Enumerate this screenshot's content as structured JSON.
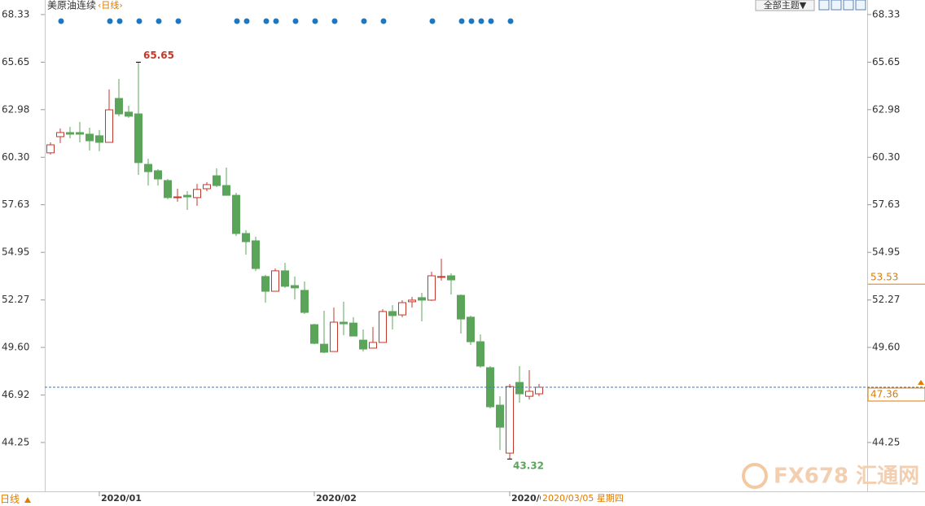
{
  "chart_data": {
    "type": "candlestick",
    "title": "美原油连续",
    "period": "‹日线›",
    "theme_button": "全部主题▼",
    "bottom_period": "日线",
    "date_label": "2020/03/05 星期四",
    "watermark": "FX678 汇通网",
    "up_color": "#c0392b",
    "down_color": "#5ba55b",
    "marker_color": "#1f77c4",
    "ylim": [
      41.5,
      69.15
    ],
    "yticks": [
      68.33,
      65.65,
      62.98,
      {
        "value": 60.3,
        "label": "60.30"
      },
      57.63,
      54.95,
      52.27,
      {
        "value": 49.6,
        "label": "49.60"
      },
      46.92,
      44.25
    ],
    "x_labels": [
      {
        "index": 5,
        "label": "2020/01"
      },
      {
        "index": 27,
        "label": "2020/02"
      },
      {
        "index": 47,
        "label": "2020/0"
      }
    ],
    "open": [
      60.55,
      61.46,
      61.69,
      61.69,
      61.6,
      61.51,
      61.14,
      63.61,
      62.84,
      62.74,
      59.9,
      59.54,
      58.99,
      58.03,
      58.16,
      58.03,
      58.53,
      59.26,
      58.71,
      58.16,
      56.01,
      55.6,
      53.59,
      52.76,
      53.91,
      53.08,
      52.81,
      50.88,
      49.78,
      49.37,
      51.02,
      50.97,
      50.01,
      49.56,
      49.88,
      51.62,
      51.43,
      52.17,
      52.4,
      52.26,
      53.59,
      53.63,
      52.53,
      51.3,
      49.92,
      48.46,
      46.35,
      43.65,
      47.63,
      46.85,
      46.99
    ],
    "high": [
      61.14,
      61.92,
      62.01,
      62.29,
      61.96,
      61.83,
      64.12,
      64.71,
      63.2,
      65.65,
      60.22,
      59.63,
      59.08,
      58.53,
      58.39,
      58.8,
      58.9,
      59.68,
      59.72,
      58.3,
      56.2,
      55.83,
      53.68,
      54.04,
      54.36,
      53.59,
      53.31,
      50.93,
      51.66,
      51.84,
      52.17,
      51.3,
      50.61,
      50.75,
      51.75,
      51.98,
      52.26,
      52.44,
      52.67,
      53.86,
      54.59,
      53.77,
      52.58,
      51.39,
      50.33,
      48.55,
      46.85,
      47.54,
      48.55,
      48.32,
      47.55
    ],
    "low": [
      60.45,
      61.1,
      61.37,
      61.14,
      60.68,
      60.64,
      61.14,
      62.61,
      62.52,
      59.31,
      58.71,
      58.71,
      57.94,
      57.8,
      57.34,
      57.57,
      58.39,
      58.62,
      58.16,
      55.87,
      54.82,
      53.9,
      52.12,
      52.76,
      52.95,
      52.3,
      51.48,
      49.78,
      49.28,
      49.37,
      50.29,
      50.24,
      49.37,
      49.56,
      49.88,
      50.61,
      51.3,
      51.84,
      51.07,
      52.21,
      53.36,
      52.58,
      50.38,
      49.74,
      48.46,
      46.17,
      43.83,
      43.32,
      46.49,
      46.67,
      46.85
    ],
    "close": [
      61.0,
      61.69,
      61.6,
      61.6,
      61.23,
      61.14,
      62.97,
      62.74,
      62.61,
      60.0,
      59.49,
      59.08,
      58.03,
      58.07,
      58.07,
      58.49,
      58.76,
      58.71,
      58.16,
      56.01,
      55.55,
      54.04,
      52.76,
      53.91,
      53.04,
      52.95,
      51.57,
      49.83,
      49.33,
      51.02,
      50.93,
      50.24,
      49.51,
      49.88,
      51.62,
      51.39,
      52.12,
      52.26,
      52.26,
      53.63,
      53.59,
      53.4,
      51.2,
      49.92,
      48.55,
      46.26,
      45.11,
      47.4,
      46.99,
      47.13,
      47.36
    ],
    "signal_indices": [
      1,
      6,
      7,
      9,
      11,
      13,
      19,
      20,
      22,
      23,
      25,
      27,
      29,
      32,
      34,
      39,
      42,
      43,
      44,
      45,
      47
    ],
    "marker_value": 53.53
  }
}
